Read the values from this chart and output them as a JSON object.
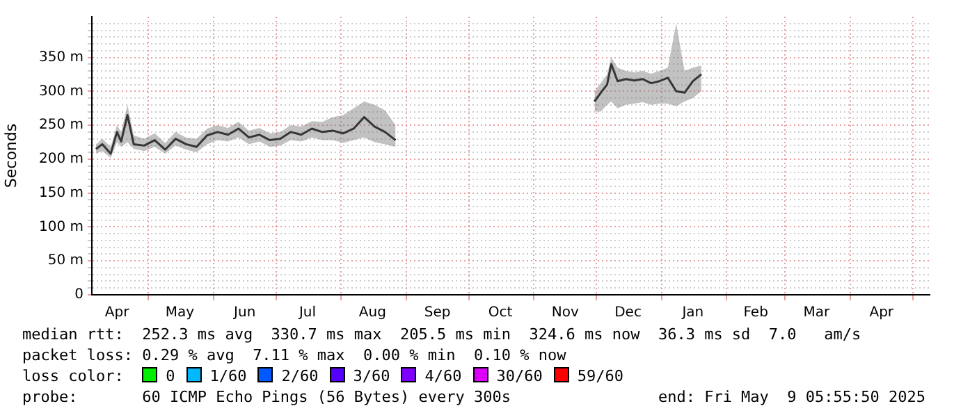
{
  "chart_data": {
    "type": "line",
    "ylabel": "Seconds",
    "legend_title": "loss color:",
    "legend": "bottom",
    "grid": true,
    "marker": "none",
    "line_style": "solid",
    "xlim": [
      "2024-04-04",
      "2025-05-09"
    ],
    "xticks": [
      {
        "value": "2024-04-16",
        "label": "Apr"
      },
      {
        "value": "2024-05-01",
        "label": null
      },
      {
        "value": "2024-05-16",
        "label": "May"
      },
      {
        "value": "2024-06-01",
        "label": null
      },
      {
        "value": "2024-06-16",
        "label": "Jun"
      },
      {
        "value": "2024-07-01",
        "label": null
      },
      {
        "value": "2024-07-16",
        "label": "Jul"
      },
      {
        "value": "2024-08-01",
        "label": null
      },
      {
        "value": "2024-08-16",
        "label": "Aug"
      },
      {
        "value": "2024-09-01",
        "label": null
      },
      {
        "value": "2024-09-16",
        "label": "Sep"
      },
      {
        "value": "2024-10-01",
        "label": null
      },
      {
        "value": "2024-10-16",
        "label": "Oct"
      },
      {
        "value": "2024-11-01",
        "label": null
      },
      {
        "value": "2024-11-16",
        "label": "Nov"
      },
      {
        "value": "2024-12-01",
        "label": null
      },
      {
        "value": "2024-12-16",
        "label": "Dec"
      },
      {
        "value": "2025-01-01",
        "label": null
      },
      {
        "value": "2025-01-16",
        "label": "Jan"
      },
      {
        "value": "2025-02-01",
        "label": null
      },
      {
        "value": "2025-02-15",
        "label": "Feb"
      },
      {
        "value": "2025-03-01",
        "label": null
      },
      {
        "value": "2025-03-16",
        "label": "Mar"
      },
      {
        "value": "2025-04-01",
        "label": null
      },
      {
        "value": "2025-04-16",
        "label": "Apr"
      },
      {
        "value": "2025-05-01",
        "label": null
      }
    ],
    "ylim": [
      0,
      410
    ],
    "yticks": [
      {
        "value": 0,
        "label": "0"
      },
      {
        "value": 10,
        "label": null
      },
      {
        "value": 20,
        "label": null
      },
      {
        "value": 30,
        "label": null
      },
      {
        "value": 40,
        "label": null
      },
      {
        "value": 50,
        "label": "50 m"
      },
      {
        "value": 60,
        "label": null
      },
      {
        "value": 70,
        "label": null
      },
      {
        "value": 80,
        "label": null
      },
      {
        "value": 90,
        "label": null
      },
      {
        "value": 100,
        "label": "100 m"
      },
      {
        "value": 110,
        "label": null
      },
      {
        "value": 120,
        "label": null
      },
      {
        "value": 130,
        "label": null
      },
      {
        "value": 140,
        "label": null
      },
      {
        "value": 150,
        "label": "150 m"
      },
      {
        "value": 160,
        "label": null
      },
      {
        "value": 170,
        "label": null
      },
      {
        "value": 180,
        "label": null
      },
      {
        "value": 190,
        "label": null
      },
      {
        "value": 200,
        "label": "200 m"
      },
      {
        "value": 210,
        "label": null
      },
      {
        "value": 220,
        "label": null
      },
      {
        "value": 230,
        "label": null
      },
      {
        "value": 240,
        "label": null
      },
      {
        "value": 250,
        "label": "250 m"
      },
      {
        "value": 260,
        "label": null
      },
      {
        "value": 270,
        "label": null
      },
      {
        "value": 280,
        "label": null
      },
      {
        "value": 290,
        "label": null
      },
      {
        "value": 300,
        "label": "300 m"
      },
      {
        "value": 310,
        "label": null
      },
      {
        "value": 320,
        "label": null
      },
      {
        "value": 330,
        "label": null
      },
      {
        "value": 340,
        "label": null
      },
      {
        "value": 350,
        "label": "350 m"
      },
      {
        "value": 360,
        "label": null
      },
      {
        "value": 370,
        "label": null
      },
      {
        "value": 380,
        "label": null
      },
      {
        "value": 390,
        "label": null
      },
      {
        "value": 400,
        "label": null
      }
    ],
    "x": [
      "2024-04-06",
      "2024-04-09",
      "2024-04-13",
      "2024-04-16",
      "2024-04-18",
      "2024-04-21",
      "2024-04-24",
      "2024-04-29",
      "2024-05-04",
      "2024-05-09",
      "2024-05-14",
      "2024-05-19",
      "2024-05-24",
      "2024-05-29",
      "2024-06-03",
      "2024-06-08",
      "2024-06-13",
      "2024-06-18",
      "2024-06-23",
      "2024-06-28",
      "2024-07-03",
      "2024-07-08",
      "2024-07-13",
      "2024-07-18",
      "2024-07-23",
      "2024-07-28",
      "2024-08-02",
      "2024-08-07",
      "2024-08-12",
      "2024-08-17",
      "2024-08-22",
      "2024-08-27",
      "2024-10-15",
      "2024-11-30",
      "2024-12-03",
      "2024-12-06",
      "2024-12-08",
      "2024-12-11",
      "2024-12-15",
      "2024-12-19",
      "2024-12-23",
      "2024-12-27",
      "2024-12-31",
      "2025-01-04",
      "2025-01-08",
      "2025-01-12",
      "2025-01-16",
      "2025-01-20"
    ],
    "series": [
      {
        "color": "#000000",
        "values": [
          215,
          222,
          208,
          240,
          226,
          265,
          222,
          220,
          228,
          214,
          230,
          222,
          218,
          235,
          240,
          236,
          245,
          232,
          236,
          228,
          230,
          240,
          236,
          245,
          240,
          242,
          238,
          245,
          262,
          248,
          240,
          228,
          null,
          285,
          298,
          310,
          340,
          315,
          318,
          316,
          318,
          312,
          315,
          320,
          300,
          298,
          315,
          325
        ],
        "lower": [
          208,
          212,
          202,
          225,
          218,
          225,
          215,
          212,
          218,
          208,
          220,
          214,
          210,
          222,
          228,
          226,
          232,
          222,
          226,
          218,
          220,
          228,
          226,
          232,
          228,
          228,
          224,
          228,
          232,
          225,
          222,
          218,
          null,
          270,
          270,
          280,
          285,
          275,
          280,
          282,
          284,
          280,
          282,
          282,
          278,
          285,
          290,
          300
        ],
        "upper": [
          222,
          230,
          218,
          250,
          240,
          280,
          235,
          230,
          238,
          224,
          240,
          232,
          230,
          245,
          250,
          246,
          255,
          242,
          246,
          238,
          240,
          250,
          248,
          256,
          255,
          262,
          265,
          275,
          285,
          280,
          272,
          250,
          null,
          300,
          312,
          325,
          350,
          335,
          330,
          328,
          330,
          326,
          330,
          335,
          400,
          330,
          335,
          338
        ]
      },
      {
        "name": "0",
        "color": "#00ee00",
        "values": [
          null,
          null,
          null,
          null,
          null,
          null,
          null,
          null,
          null,
          null,
          null,
          null,
          null,
          null,
          null,
          null,
          null,
          null,
          null,
          null,
          null,
          null,
          null,
          null,
          null,
          null,
          null,
          null,
          null,
          null,
          null,
          null,
          null,
          null,
          null,
          null,
          null,
          null,
          null,
          null,
          null,
          null,
          null,
          null,
          null,
          null,
          null,
          null
        ]
      },
      {
        "name": "1/60",
        "color": "#00b8ff",
        "values": [
          null,
          null,
          null,
          null,
          null,
          null,
          null,
          null,
          null,
          null,
          null,
          null,
          null,
          null,
          null,
          null,
          null,
          null,
          null,
          null,
          null,
          null,
          null,
          null,
          null,
          null,
          null,
          null,
          null,
          null,
          null,
          null,
          null,
          null,
          null,
          null,
          null,
          null,
          null,
          null,
          null,
          null,
          null,
          null,
          null,
          null,
          null,
          null
        ]
      },
      {
        "name": "2/60",
        "color": "#0059ff",
        "values": [
          null,
          null,
          null,
          null,
          null,
          null,
          null,
          null,
          null,
          null,
          null,
          null,
          null,
          null,
          null,
          null,
          null,
          null,
          null,
          null,
          null,
          null,
          null,
          null,
          null,
          null,
          null,
          null,
          null,
          null,
          null,
          null,
          null,
          null,
          null,
          null,
          null,
          null,
          null,
          null,
          null,
          null,
          null,
          null,
          null,
          null,
          null,
          null
        ]
      },
      {
        "name": "3/60",
        "color": "#5500ff",
        "values": [
          null,
          null,
          null,
          null,
          null,
          null,
          null,
          null,
          null,
          null,
          null,
          null,
          null,
          null,
          null,
          null,
          null,
          null,
          null,
          null,
          null,
          null,
          null,
          null,
          null,
          null,
          null,
          null,
          null,
          null,
          null,
          null,
          null,
          null,
          null,
          null,
          null,
          null,
          null,
          null,
          null,
          null,
          null,
          null,
          null,
          null,
          null,
          null
        ]
      },
      {
        "name": "4/60",
        "color": "#7e00ff",
        "values": [
          null,
          null,
          null,
          null,
          null,
          null,
          null,
          null,
          null,
          null,
          null,
          null,
          null,
          null,
          null,
          null,
          null,
          null,
          null,
          null,
          null,
          null,
          null,
          null,
          null,
          null,
          null,
          null,
          null,
          null,
          null,
          null,
          null,
          null,
          null,
          null,
          null,
          null,
          null,
          null,
          null,
          null,
          null,
          null,
          null,
          null,
          null,
          null
        ]
      },
      {
        "name": "30/60",
        "color": "#dd00ff",
        "values": [
          null,
          null,
          null,
          null,
          null,
          null,
          null,
          null,
          null,
          null,
          null,
          null,
          null,
          null,
          null,
          null,
          null,
          null,
          null,
          null,
          null,
          null,
          null,
          null,
          null,
          null,
          null,
          null,
          null,
          null,
          null,
          null,
          null,
          null,
          null,
          null,
          null,
          null,
          null,
          null,
          null,
          null,
          null,
          null,
          null,
          null,
          null,
          null
        ]
      },
      {
        "name": "59/60",
        "color": "#ff0000",
        "values": [
          null,
          null,
          null,
          null,
          null,
          null,
          null,
          null,
          null,
          null,
          null,
          null,
          null,
          null,
          null,
          null,
          null,
          null,
          null,
          null,
          null,
          null,
          null,
          null,
          null,
          null,
          null,
          null,
          null,
          null,
          null,
          null,
          null,
          null,
          null,
          null,
          null,
          null,
          null,
          null,
          null,
          null,
          null,
          null,
          null,
          null,
          null,
          null
        ]
      }
    ],
    "annotations": [
      "median rtt:  252.3 ms avg  330.7 ms max  205.5 ms min  324.6 ms now  36.3 ms sd  7.0   am/s",
      "packet loss: 0.29 % avg  7.11 % max  0.00 % min  0.10 % now",
      "probe:       60 ICMP Echo Pings (56 Bytes) every 300s                end: Fri May  9 05:55:50 2025"
    ]
  }
}
